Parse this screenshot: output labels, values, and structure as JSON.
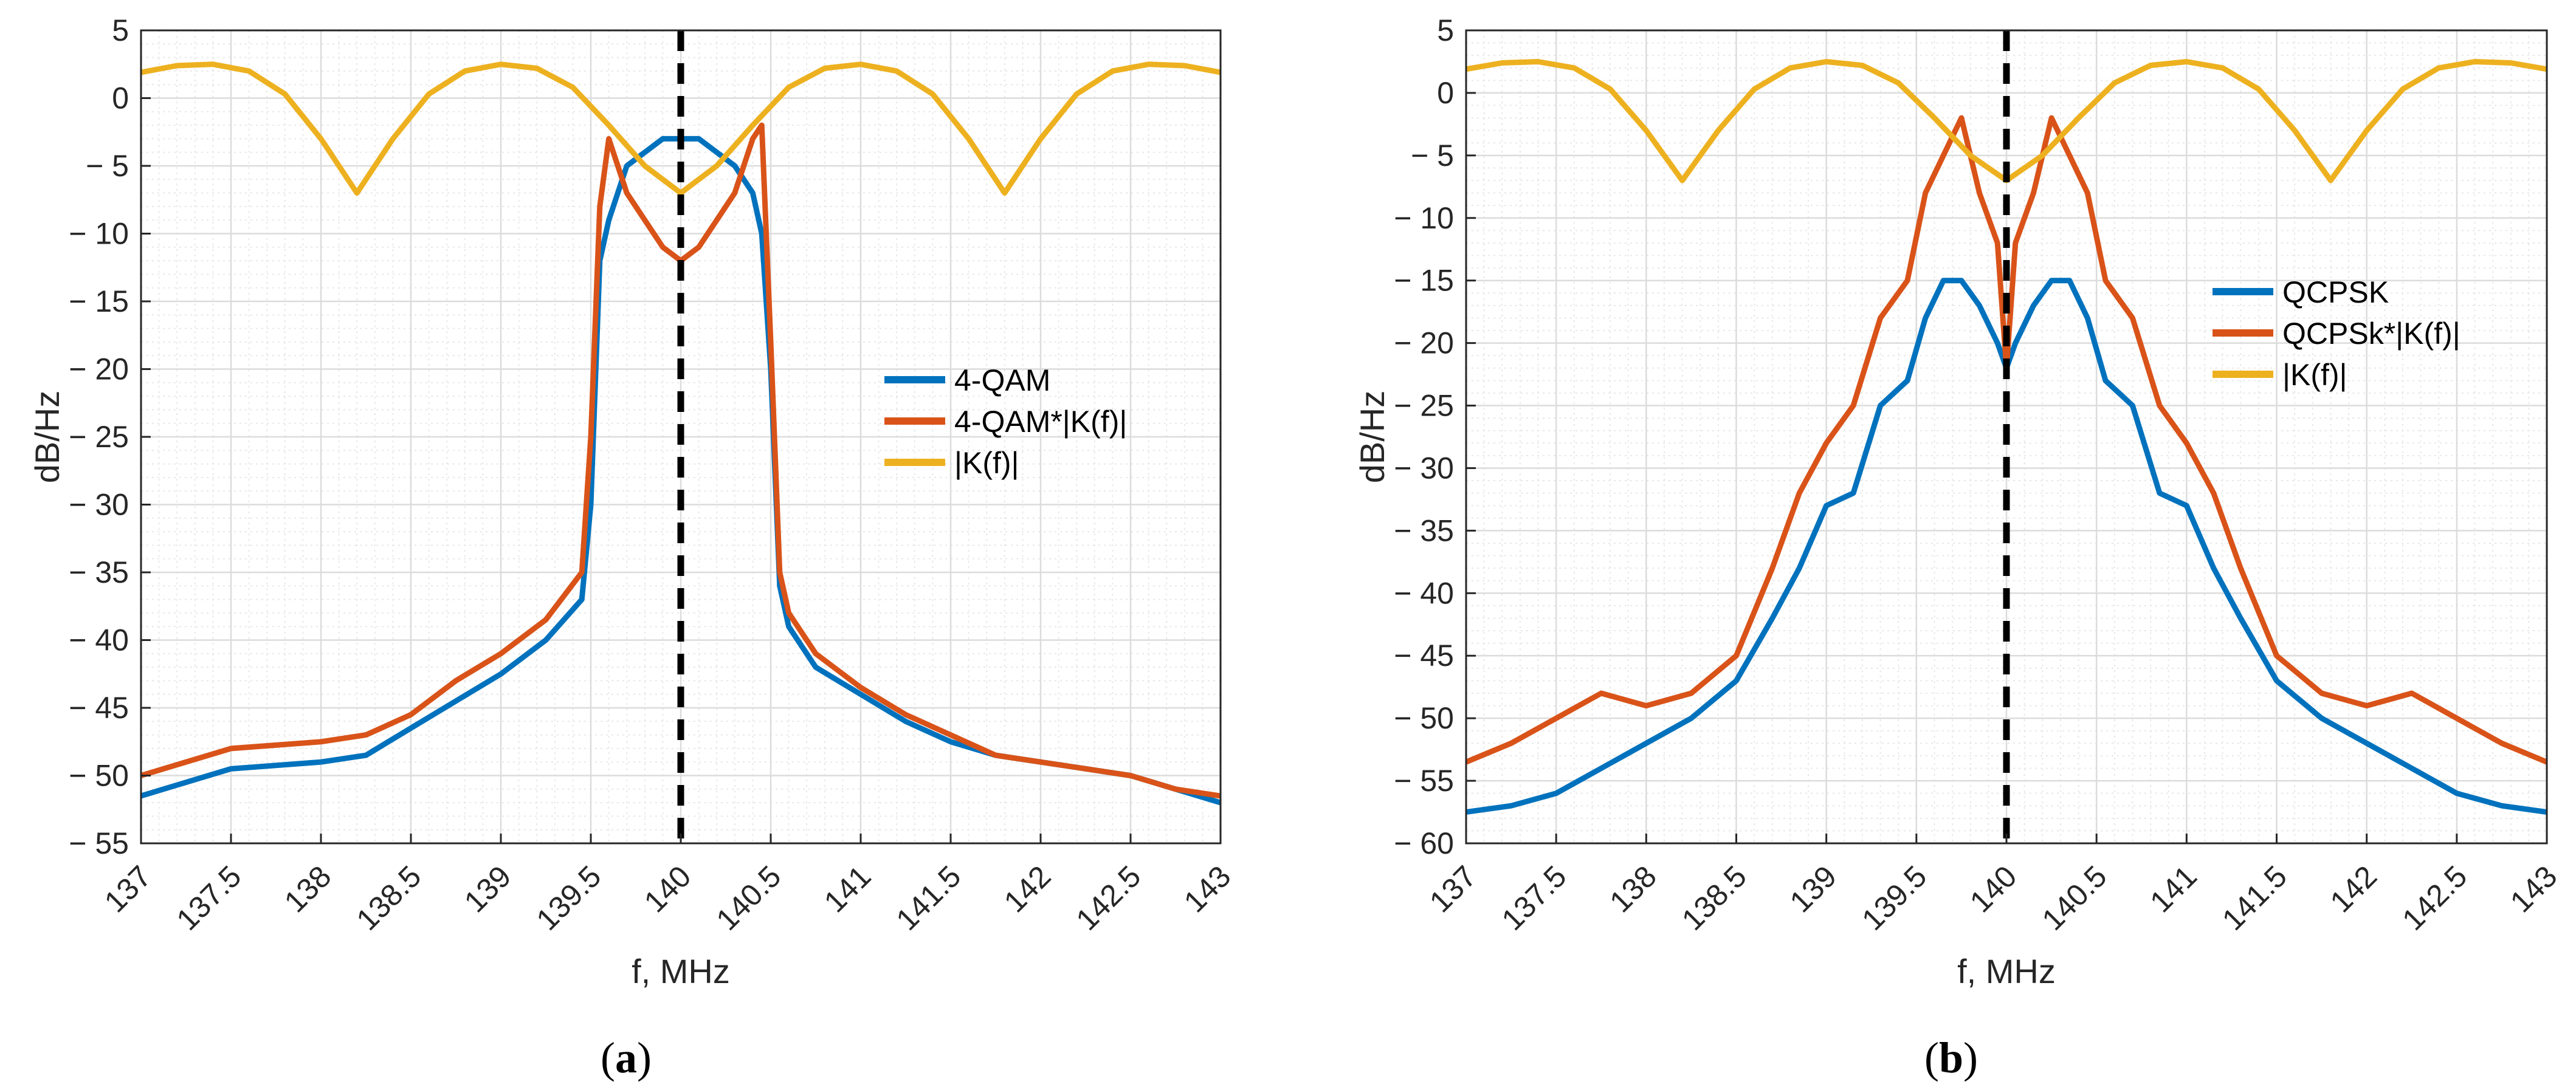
{
  "colors": {
    "blue": "#0072BD",
    "orange": "#D95319",
    "yellow": "#EDB120",
    "grid_major": "#dcdcdc",
    "grid_minor": "#e8e8e8",
    "axis": "#262626",
    "marker": "#000000"
  },
  "chart_data": [
    {
      "type": "line",
      "panel_caption": "(a)",
      "title": "",
      "xlabel": "f, MHz",
      "ylabel": "dB/Hz",
      "xlim": [
        137,
        143
      ],
      "ylim": [
        -55,
        5
      ],
      "xticks": [
        "137",
        "137.5",
        "138",
        "138.5",
        "139",
        "139.5",
        "140",
        "140.5",
        "141",
        "141.5",
        "142",
        "142.5",
        "143"
      ],
      "yticks": [
        "5",
        "0",
        "-5",
        "-10",
        "-15",
        "-20",
        "-25",
        "-30",
        "-35",
        "-40",
        "-45",
        "-50",
        "-55"
      ],
      "grid": true,
      "minor_grid": true,
      "vertical_marker": {
        "x": 140,
        "style": "dashed"
      },
      "legend_position": "center-right",
      "series": [
        {
          "name": "4-QAM",
          "color": "#0072BD",
          "x": [
            137,
            137.5,
            138,
            138.25,
            138.5,
            138.75,
            139,
            139.25,
            139.45,
            139.5,
            139.55,
            139.6,
            139.7,
            139.8,
            139.9,
            140,
            140.1,
            140.2,
            140.3,
            140.4,
            140.45,
            140.5,
            140.55,
            140.6,
            140.75,
            141,
            141.25,
            141.5,
            141.75,
            142,
            142.25,
            142.5,
            142.75,
            143
          ],
          "y": [
            -51.5,
            -49.5,
            -49,
            -48.5,
            -46.5,
            -44.5,
            -42.5,
            -40,
            -37,
            -30,
            -12,
            -9,
            -5,
            -4,
            -3,
            -3,
            -3,
            -4,
            -5,
            -7,
            -10,
            -20,
            -36,
            -39,
            -42,
            -44,
            -46,
            -47.5,
            -48.5,
            -49,
            -49.5,
            -50,
            -51,
            -52
          ]
        },
        {
          "name": "4-QAM*|K(f)|",
          "color": "#D95319",
          "x": [
            137,
            137.5,
            138,
            138.25,
            138.5,
            138.75,
            139,
            139.25,
            139.45,
            139.5,
            139.55,
            139.6,
            139.7,
            139.8,
            139.9,
            140,
            140.1,
            140.2,
            140.3,
            140.4,
            140.45,
            140.5,
            140.55,
            140.6,
            140.75,
            141,
            141.25,
            141.5,
            141.75,
            142,
            142.25,
            142.5,
            142.75,
            143
          ],
          "y": [
            -50,
            -48,
            -47.5,
            -47,
            -45.5,
            -43,
            -41,
            -38.5,
            -35,
            -25,
            -8,
            -3,
            -7,
            -9,
            -11,
            -12,
            -11,
            -9,
            -7,
            -3,
            -2,
            -18,
            -35,
            -38,
            -41,
            -43.5,
            -45.5,
            -47,
            -48.5,
            -49,
            -49.5,
            -50,
            -51,
            -51.5
          ]
        },
        {
          "name": "|K(f)|",
          "color": "#EDB120",
          "x": [
            137,
            137.2,
            137.4,
            137.6,
            137.8,
            138,
            138.2,
            138.4,
            138.6,
            138.8,
            139,
            139.2,
            139.4,
            139.6,
            139.8,
            140,
            140.2,
            140.4,
            140.6,
            140.8,
            141,
            141.2,
            141.4,
            141.6,
            141.8,
            142,
            142.2,
            142.4,
            142.6,
            142.8,
            143
          ],
          "y": [
            1.9,
            2.4,
            2.5,
            2.0,
            0.3,
            -3,
            -7,
            -3,
            0.3,
            2.0,
            2.5,
            2.2,
            0.8,
            -2,
            -5,
            -7,
            -5,
            -2,
            0.8,
            2.2,
            2.5,
            2.0,
            0.3,
            -3,
            -7,
            -3,
            0.3,
            2.0,
            2.5,
            2.4,
            1.9
          ]
        }
      ]
    },
    {
      "type": "line",
      "panel_caption": "(b)",
      "title": "",
      "xlabel": "f, MHz",
      "ylabel": "dB/Hz",
      "xlim": [
        137,
        143
      ],
      "ylim": [
        -60,
        5
      ],
      "xticks": [
        "137",
        "137.5",
        "138",
        "138.5",
        "139",
        "139.5",
        "140",
        "140.5",
        "141",
        "141.5",
        "142",
        "142.5",
        "143"
      ],
      "yticks": [
        "5",
        "0",
        "-5",
        "-10",
        "-15",
        "-20",
        "-25",
        "-30",
        "-35",
        "-40",
        "-45",
        "-50",
        "-55",
        "-60"
      ],
      "grid": true,
      "minor_grid": true,
      "vertical_marker": {
        "x": 140,
        "style": "dashed"
      },
      "legend_position": "center-right",
      "series": [
        {
          "name": "QCPSK",
          "color": "#0072BD",
          "x": [
            137,
            137.25,
            137.5,
            137.75,
            138,
            138.25,
            138.5,
            138.7,
            138.85,
            139,
            139.15,
            139.3,
            139.45,
            139.55,
            139.65,
            139.75,
            139.85,
            139.95,
            140,
            140.05,
            140.15,
            140.25,
            140.35,
            140.45,
            140.55,
            140.7,
            140.85,
            141,
            141.15,
            141.3,
            141.5,
            141.75,
            142,
            142.25,
            142.5,
            142.75,
            143
          ],
          "y": [
            -57.5,
            -57,
            -56,
            -54,
            -52,
            -50,
            -47,
            -42,
            -38,
            -33,
            -32,
            -25,
            -23,
            -18,
            -15,
            -15,
            -17,
            -20,
            -22,
            -20,
            -17,
            -15,
            -15,
            -18,
            -23,
            -25,
            -32,
            -33,
            -38,
            -42,
            -47,
            -50,
            -52,
            -54,
            -56,
            -57,
            -57.5
          ]
        },
        {
          "name": "QCPSk*|K(f)|",
          "color": "#D95319",
          "x": [
            137,
            137.25,
            137.5,
            137.75,
            138,
            138.25,
            138.5,
            138.7,
            138.85,
            139,
            139.15,
            139.3,
            139.45,
            139.55,
            139.65,
            139.75,
            139.85,
            139.95,
            140,
            140.05,
            140.15,
            140.25,
            140.35,
            140.45,
            140.55,
            140.7,
            140.85,
            141,
            141.15,
            141.3,
            141.5,
            141.75,
            142,
            142.25,
            142.5,
            142.75,
            143
          ],
          "y": [
            -53.5,
            -52,
            -50,
            -48,
            -49,
            -48,
            -45,
            -38,
            -32,
            -28,
            -25,
            -18,
            -15,
            -8,
            -5,
            -2,
            -8,
            -12,
            -22,
            -12,
            -8,
            -2,
            -5,
            -8,
            -15,
            -18,
            -25,
            -28,
            -32,
            -38,
            -45,
            -48,
            -49,
            -48,
            -50,
            -52,
            -53.5
          ]
        },
        {
          "name": "|K(f)|",
          "color": "#EDB120",
          "x": [
            137,
            137.2,
            137.4,
            137.6,
            137.8,
            138,
            138.2,
            138.4,
            138.6,
            138.8,
            139,
            139.2,
            139.4,
            139.6,
            139.8,
            140,
            140.2,
            140.4,
            140.6,
            140.8,
            141,
            141.2,
            141.4,
            141.6,
            141.8,
            142,
            142.2,
            142.4,
            142.6,
            142.8,
            143
          ],
          "y": [
            1.9,
            2.4,
            2.5,
            2.0,
            0.3,
            -3,
            -7,
            -3,
            0.3,
            2.0,
            2.5,
            2.2,
            0.8,
            -2,
            -5,
            -7,
            -5,
            -2,
            0.8,
            2.2,
            2.5,
            2.0,
            0.3,
            -3,
            -7,
            -3,
            0.3,
            2.0,
            2.5,
            2.4,
            1.9
          ]
        }
      ]
    }
  ]
}
